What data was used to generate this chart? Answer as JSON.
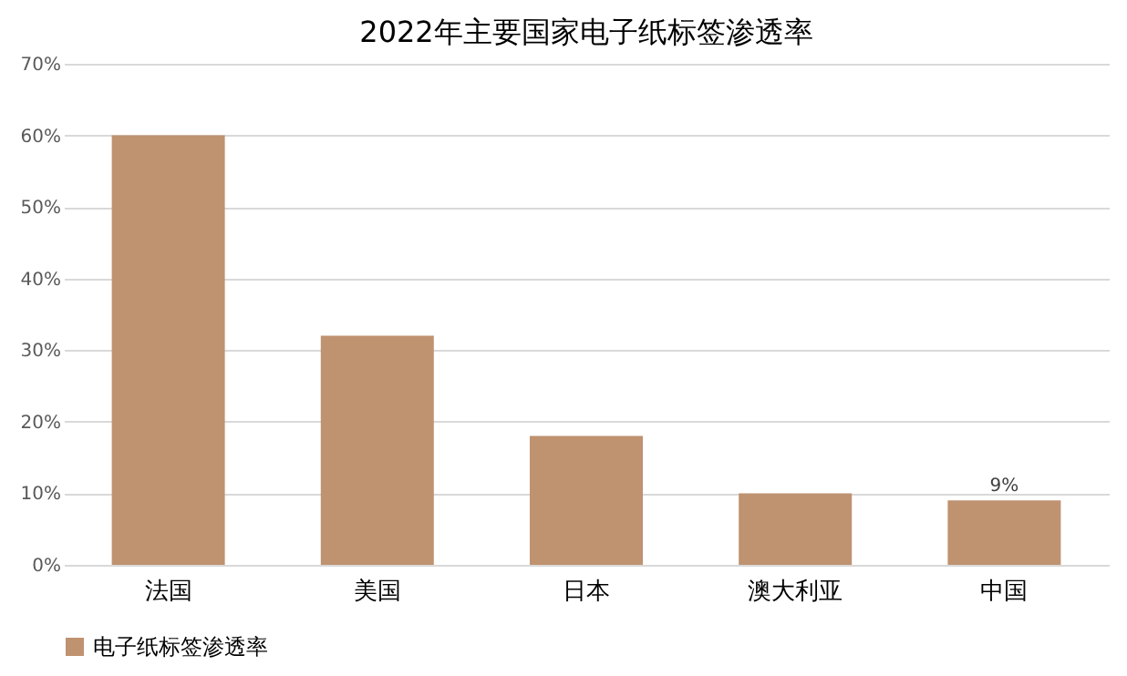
{
  "chart_data": {
    "type": "bar",
    "title": "2022年主要国家电子纸标签渗透率",
    "categories": [
      "法国",
      "美国",
      "日本",
      "澳大利亚",
      "中国"
    ],
    "series": [
      {
        "name": "电子纸标签渗透率",
        "color": "#bf9270",
        "values": [
          60,
          32,
          18,
          10,
          9
        ],
        "value_labels": [
          null,
          null,
          null,
          null,
          "9%"
        ]
      }
    ],
    "ylim": [
      0,
      70
    ],
    "yticks": [
      {
        "value": 0,
        "label": "0%"
      },
      {
        "value": 10,
        "label": "10%"
      },
      {
        "value": 20,
        "label": "20%"
      },
      {
        "value": 30,
        "label": "30%"
      },
      {
        "value": 40,
        "label": "40%"
      },
      {
        "value": 50,
        "label": "50%"
      },
      {
        "value": 60,
        "label": "60%"
      },
      {
        "value": 70,
        "label": "70%"
      }
    ],
    "grid": "y",
    "legend": "bottom"
  }
}
